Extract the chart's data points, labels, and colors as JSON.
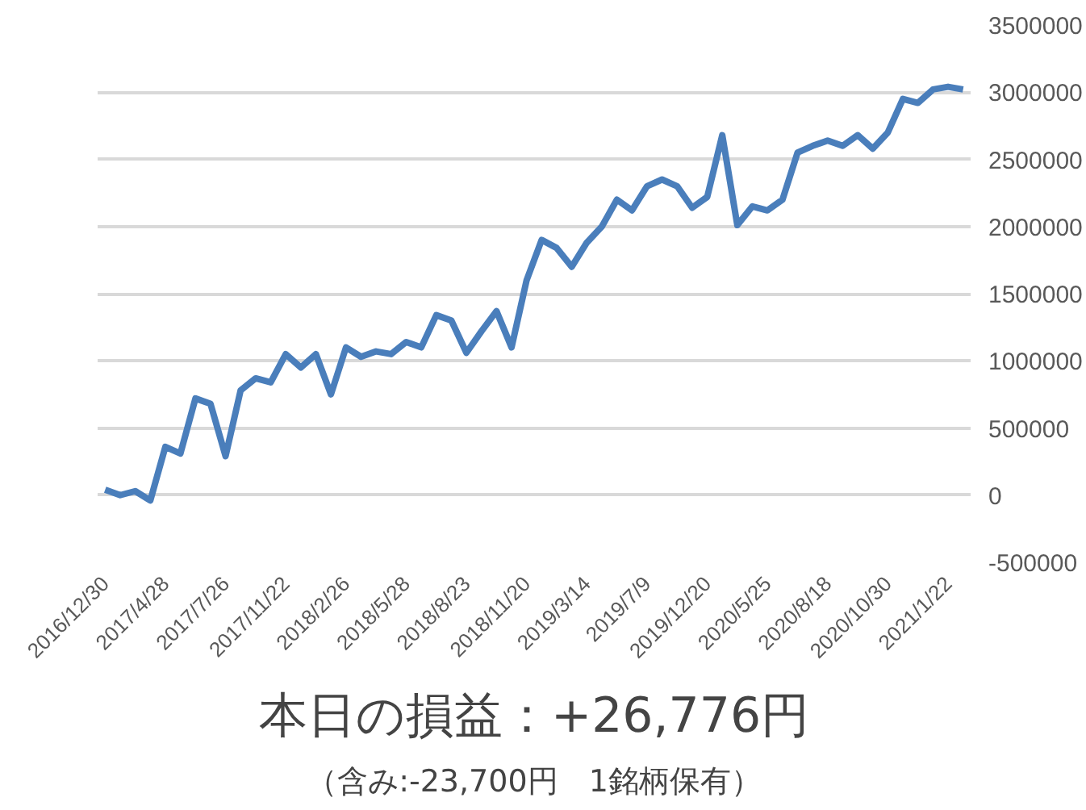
{
  "chart_data": {
    "type": "line",
    "title": "本日の損益：+26,776円",
    "subtitle": "（含み:-23,700円　1銘柄保有）",
    "categories": [
      "2016/12/30",
      null,
      null,
      null,
      "2017/4/28",
      null,
      null,
      null,
      "2017/7/26",
      null,
      null,
      null,
      "2017/11/22",
      null,
      null,
      null,
      "2018/2/26",
      null,
      null,
      null,
      "2018/5/28",
      null,
      null,
      null,
      "2018/8/23",
      null,
      null,
      null,
      "2018/11/20",
      null,
      null,
      null,
      "2019/3/14",
      null,
      null,
      null,
      "2019/7/9",
      null,
      null,
      null,
      "2019/12/20",
      null,
      null,
      null,
      "2020/5/25",
      null,
      null,
      null,
      "2020/8/18",
      null,
      null,
      null,
      "2020/10/30",
      null,
      null,
      null,
      "2021/1/22",
      null
    ],
    "series": [
      {
        "color": "#4a7ebb",
        "values": [
          40000,
          0,
          30000,
          -40000,
          360000,
          310000,
          720000,
          680000,
          290000,
          780000,
          870000,
          840000,
          1050000,
          950000,
          1050000,
          750000,
          1100000,
          1030000,
          1070000,
          1050000,
          1140000,
          1100000,
          1340000,
          1300000,
          1060000,
          1220000,
          1370000,
          1100000,
          1600000,
          1900000,
          1840000,
          1700000,
          1880000,
          2000000,
          2200000,
          2120000,
          2300000,
          2350000,
          2300000,
          2140000,
          2220000,
          2680000,
          2010000,
          2150000,
          2120000,
          2200000,
          2550000,
          2600000,
          2640000,
          2600000,
          2680000,
          2580000,
          2700000,
          2950000,
          2920000,
          3020000,
          3040000,
          3020000
        ]
      }
    ],
    "ylim": [
      -500000,
      3500000
    ],
    "yticks": [
      -500000,
      0,
      500000,
      1000000,
      1500000,
      2000000,
      2500000,
      3000000,
      3500000
    ],
    "grid": "y"
  }
}
